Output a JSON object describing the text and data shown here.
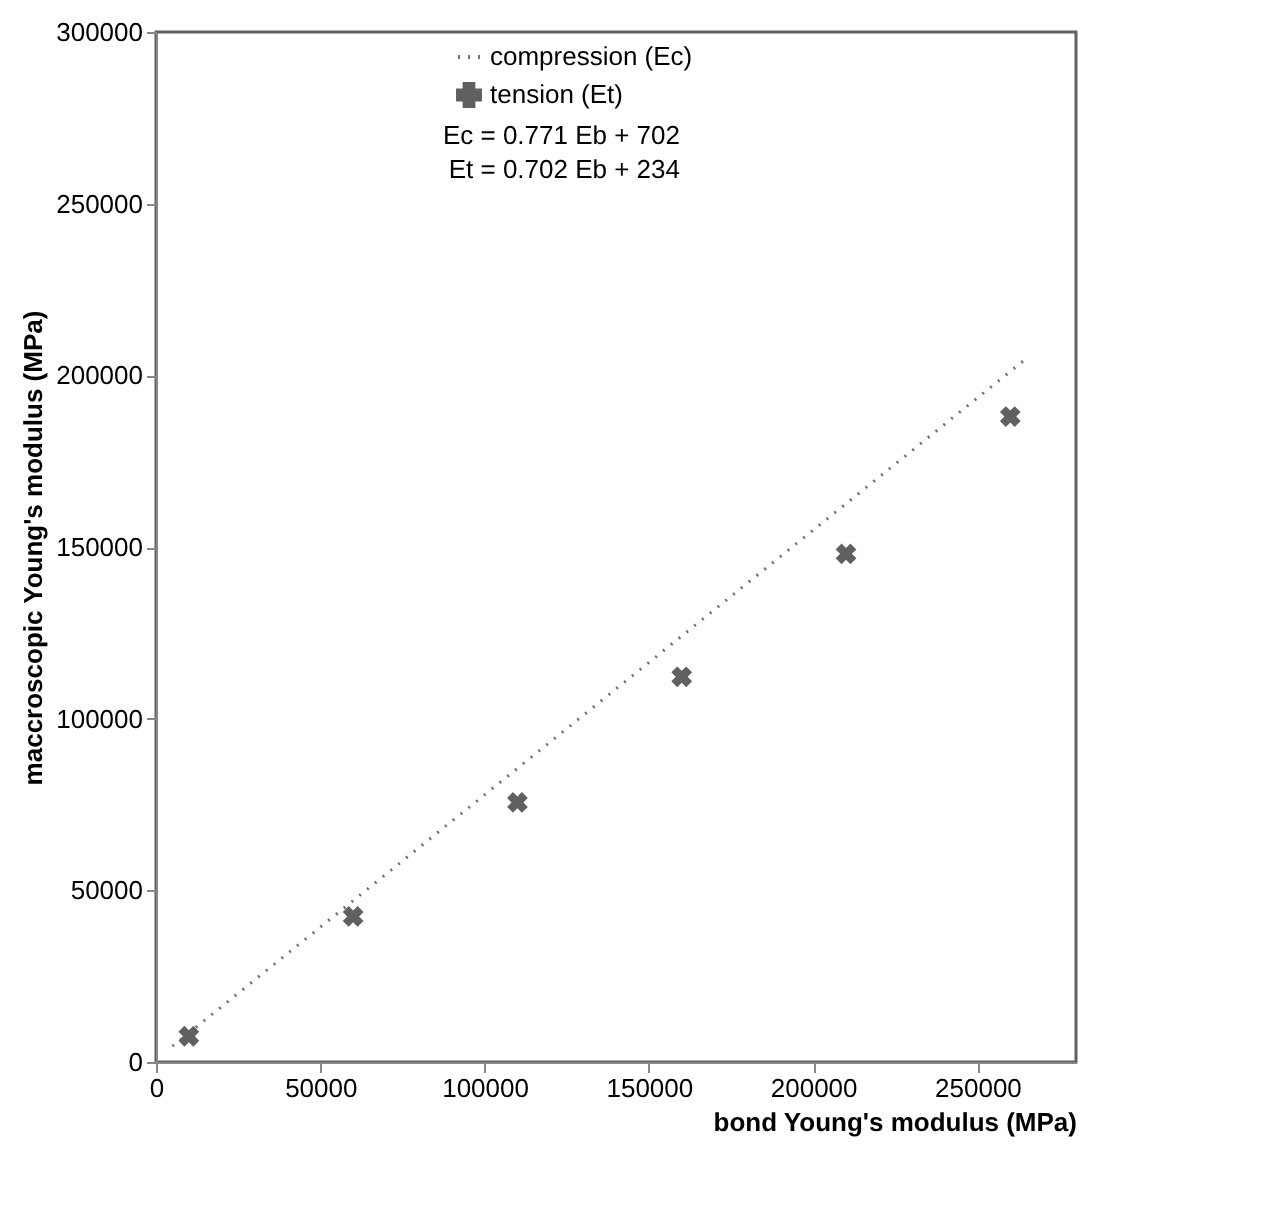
{
  "chart_data": {
    "type": "scatter",
    "xlabel": "bond Young's modulus (MPa)",
    "ylabel": "maccroscopic Young's modulus (MPa)",
    "xlim": [
      0,
      280000
    ],
    "ylim": [
      0,
      300000
    ],
    "xticks": [
      0,
      50000,
      100000,
      150000,
      200000,
      250000
    ],
    "yticks": [
      0,
      50000,
      100000,
      150000,
      200000,
      250000,
      300000
    ],
    "legend": "top",
    "series": [
      {
        "name": "compression (Ec)",
        "type": "line",
        "line_style": "dotted",
        "color": "#707070",
        "x": [
          5000,
          265000
        ],
        "values": [
          4600,
          205000
        ]
      },
      {
        "name": "tension (Et)",
        "marker": "cross",
        "color": "#606060",
        "x": [
          10000,
          60000,
          110000,
          160000,
          210000,
          260000
        ],
        "values": [
          7500,
          42400,
          75600,
          112200,
          148000,
          188000
        ]
      }
    ],
    "annotations": [
      "Ec = 0.771 Eb + 702",
      "Et = 0.702 Eb + 234"
    ]
  }
}
